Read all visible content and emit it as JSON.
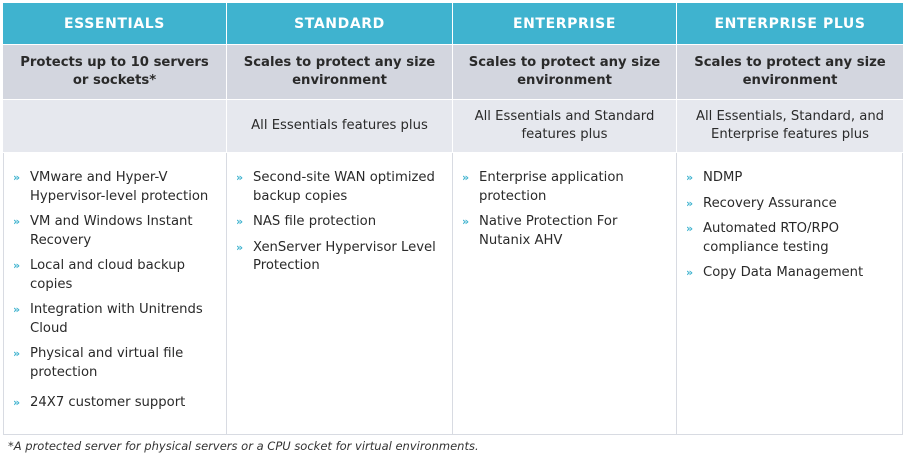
{
  "accent_color": "#3fb3cf",
  "bullet_icon": "double-chevron-right",
  "columns": [
    {
      "name": "ESSENTIALS",
      "summary": "Protects up to 10 servers or sockets*",
      "includes": "",
      "features": [
        "VMware and Hyper-V Hypervisor-level protection",
        "VM and Windows Instant Recovery",
        "Local and cloud backup copies",
        "Integration with Unitrends Cloud",
        "Physical and virtual file protection",
        "24X7 customer support"
      ]
    },
    {
      "name": "STANDARD",
      "summary": "Scales to protect any size environment",
      "includes": "All Essentials features plus",
      "features": [
        "Second-site WAN optimized backup copies",
        "NAS file protection",
        "XenServer Hypervisor Level Protection"
      ]
    },
    {
      "name": "ENTERPRISE",
      "summary": "Scales to protect any size environment",
      "includes": "All Essentials and Standard features plus",
      "features": [
        "Enterprise application protection",
        "Native Protection For Nutanix AHV"
      ]
    },
    {
      "name": "ENTERPRISE PLUS",
      "summary": "Scales to protect any size environment",
      "includes": "All Essentials, Standard, and Enterprise features plus",
      "features": [
        "NDMP",
        "Recovery Assurance",
        "Automated RTO/RPO compliance testing",
        "Copy Data Management"
      ]
    }
  ],
  "footnote": "*A protected server for physical servers or a CPU socket for virtual environments."
}
